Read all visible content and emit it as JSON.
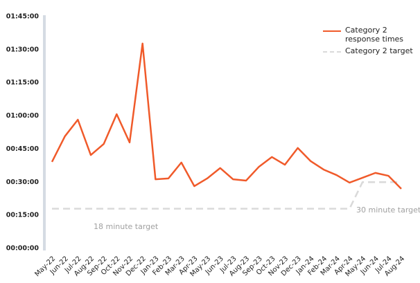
{
  "chart_data": {
    "type": "line",
    "categories": [
      "May-22",
      "Jun-22",
      "Jul-22",
      "Aug-22",
      "Sep-22",
      "Oct-22",
      "Nov-22",
      "Dec-22",
      "Jan-23",
      "Feb-23",
      "Mar-23",
      "Apr-23",
      "May-23",
      "Jun-23",
      "Jul-23",
      "Aug-23",
      "Sep-23",
      "Oct-23",
      "Nov-23",
      "Dec-23",
      "Jan-24",
      "Feb-24",
      "Mar-24",
      "Apr-24",
      "May-24",
      "Jun-24",
      "Jul-24",
      "Aug-24"
    ],
    "series": [
      {
        "name": "Category 2 response times",
        "color": "#f05a2a",
        "dashed": false,
        "values": [
          39.2,
          50.8,
          58.3,
          42.3,
          47.3,
          60.8,
          48,
          92.8,
          31.3,
          31.7,
          38.9,
          28.2,
          31.7,
          36.4,
          31.3,
          30.7,
          37,
          41.4,
          37.9,
          45.5,
          39.5,
          35.7,
          33.2,
          29.8,
          32,
          34.2,
          32.9,
          27
        ]
      },
      {
        "name": "Category 2 target",
        "color": "#d9d9d9",
        "dashed": true,
        "values": [
          18,
          18,
          18,
          18,
          18,
          18,
          18,
          18,
          18,
          18,
          18,
          18,
          18,
          18,
          18,
          18,
          18,
          18,
          18,
          18,
          18,
          18,
          18,
          18,
          30,
          30,
          30,
          30
        ]
      }
    ],
    "annotations": [
      "18 minute target",
      "30 minute target"
    ],
    "ylim": [
      0,
      105
    ],
    "yticks": [
      {
        "value": 0,
        "label": "00:00:00"
      },
      {
        "value": 15,
        "label": "00:15:00"
      },
      {
        "value": 30,
        "label": "00:30:00"
      },
      {
        "value": 45,
        "label": "00:45:00"
      },
      {
        "value": 60,
        "label": "01:00:00"
      },
      {
        "value": 75,
        "label": "01:15:00"
      },
      {
        "value": 90,
        "label": "01:30:00"
      },
      {
        "value": 105,
        "label": "01:45:00"
      }
    ],
    "grid": false
  }
}
